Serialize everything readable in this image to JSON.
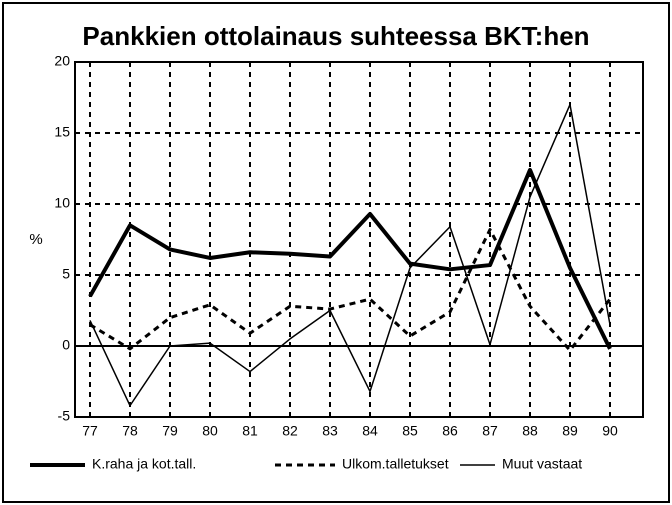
{
  "chart_data": {
    "type": "line",
    "title": "Pankkien ottolainaus suhteessa BKT:hen",
    "ylabel": "%",
    "categories": [
      "77",
      "78",
      "79",
      "80",
      "81",
      "82",
      "83",
      "84",
      "85",
      "86",
      "87",
      "88",
      "89",
      "90"
    ],
    "series": [
      {
        "name": "K.raha ja kot.tall.",
        "color": "#000000",
        "width": 4,
        "dash": false,
        "values": [
          3.5,
          8.5,
          6.8,
          6.2,
          6.6,
          6.5,
          6.3,
          9.3,
          5.8,
          5.4,
          5.7,
          12.4,
          5.5,
          -0.2
        ]
      },
      {
        "name": "Ulkom.talletukset",
        "color": "#000000",
        "width": 3,
        "dash": true,
        "values": [
          1.5,
          -0.2,
          2.0,
          2.9,
          0.9,
          2.8,
          2.6,
          3.3,
          0.7,
          2.4,
          8.2,
          2.8,
          -0.3,
          3.3
        ]
      },
      {
        "name": "Muut vastaat",
        "color": "#000000",
        "width": 1.5,
        "dash": false,
        "values": [
          1.8,
          -4.2,
          0,
          0.2,
          -1.8,
          0.5,
          2.5,
          -3.2,
          5.5,
          8.4,
          0.1,
          10.5,
          17,
          1.5
        ]
      }
    ],
    "ylim": [
      -5,
      20
    ],
    "yticks": [
      -5,
      0,
      5,
      10,
      15,
      20
    ],
    "grid": true,
    "legend": "bottom"
  }
}
